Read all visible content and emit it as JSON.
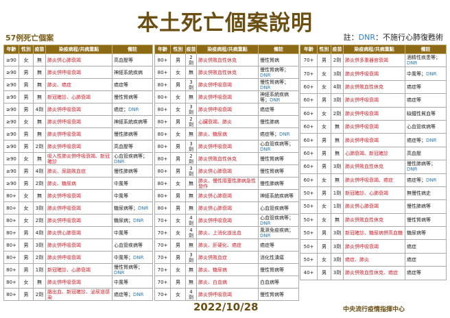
{
  "title": "本土死亡個案說明",
  "case_count": "57例死亡個案",
  "note": {
    "prefix": "註：",
    "dnr": "DNR",
    "text": "：不施行心肺復甦術"
  },
  "headers": [
    "年齡",
    "性別",
    "疫苗",
    "染疫病程/共病重點",
    "備註"
  ],
  "tables": [
    [
      [
        "≥90",
        "女",
        "無",
        "肺炎併心肺衰竭",
        "高血壓等"
      ],
      [
        "≥90",
        "男",
        "無",
        "肺炎併呼吸衰竭",
        "神經系統疾病"
      ],
      [
        "≥90",
        "男",
        "無",
        "肺炎、癌症",
        "癌症等"
      ],
      [
        "≥90",
        "男",
        "無",
        "新冠確診、心肺衰竭",
        "慢性腎病等"
      ],
      [
        "≥90",
        "男",
        "4劑",
        "肺炎併呼吸衰竭",
        "癌症；DNR"
      ],
      [
        "≥90",
        "女",
        "無",
        "肺炎併呼吸衰竭",
        "神經系統疾病等"
      ],
      [
        "≥90",
        "男",
        "無",
        "肺炎併呼吸衰竭",
        "慢性肺病等"
      ],
      [
        "≥90",
        "男",
        "2劑",
        "肺炎併呼吸衰竭",
        "高血壓等"
      ],
      [
        "≥90",
        "女",
        "無",
        "吸入性肺炎併呼吸衰竭、新冠確診",
        "心血管疾病等；DNR"
      ],
      [
        "≥90",
        "男",
        "4劑",
        "肺炎、尿路敗血症",
        "慢性肺病等"
      ],
      [
        "≥90",
        "男",
        "2劑",
        "肺炎、糖尿病",
        "中風等"
      ],
      [
        "80+",
        "女",
        "無",
        "肺炎併呼吸衰竭",
        "中風等"
      ],
      [
        "80+",
        "女",
        "3劑",
        "肺炎併呼吸衰竭",
        "糖尿病等；DNR"
      ],
      [
        "80+",
        "女",
        "2劑",
        "肺炎併呼吸衰竭",
        "糖尿病；DNR"
      ],
      [
        "80+",
        "男",
        "4劑",
        "肺炎併心肺衰竭",
        "中風等"
      ],
      [
        "80+",
        "男",
        "3劑",
        "肺炎併呼吸衰竭",
        "心血管疾病等"
      ],
      [
        "80+",
        "男",
        "2劑",
        "肺炎併呼吸衰竭",
        "中風等；DNR"
      ],
      [
        "80+",
        "男",
        "1劑",
        "新冠確診、心肺衰竭",
        "慢性腎病等；DNR"
      ],
      [
        "80+",
        "女",
        "無",
        "肺炎併呼吸衰竭",
        "中風等"
      ],
      [
        "80+",
        "男",
        "2劑",
        "腦出血、新冠確診、泌尿道感染",
        "癌症等；DNR"
      ]
    ],
    [
      [
        "80+",
        "男",
        "2劑",
        "肺炎併敗血性休克",
        "慢性腎病"
      ],
      [
        "80+",
        "女",
        "無",
        "肺炎併敗血性休克",
        "慢性腎病等；DNR"
      ],
      [
        "80+",
        "男",
        "3劑",
        "肺炎併呼吸衰竭",
        "慢性腎病等；DNR"
      ],
      [
        "80+",
        "女",
        "無",
        "肺炎併呼吸衰竭",
        "神經系統疾病等；DNR"
      ],
      [
        "80+",
        "女",
        "3劑",
        "肺炎併呼吸衰竭",
        "癌症等"
      ],
      [
        "80+",
        "男",
        "2劑",
        "心臟衰竭、肺炎",
        "慢性肺病"
      ],
      [
        "80+",
        "女",
        "無",
        "肺炎、糖尿病",
        "癌症等；DNR"
      ],
      [
        "80+",
        "男",
        "3劑",
        "肺炎併呼吸衰竭",
        "心血管疾病等；DNR"
      ],
      [
        "80+",
        "男",
        "2劑",
        "肺炎併敗血性休克",
        "慢性腎病等"
      ],
      [
        "80+",
        "男",
        "3劑",
        "肺炎併心肺衰竭",
        "慢性腎病等"
      ],
      [
        "80+",
        "女",
        "無",
        "肺炎、慢性阻塞性肺病急性發作",
        "慢性肺病等"
      ],
      [
        "80+",
        "男",
        "無",
        "肺炎併心肺衰竭",
        "神經系統疾病等"
      ],
      [
        "80+",
        "男",
        "無",
        "肺炎併心肺衰竭",
        "心血管疾病等"
      ],
      [
        "70+",
        "女",
        "4劑",
        "肺炎併呼吸衰竭",
        "心血管疾病等；DNR"
      ],
      [
        "70+",
        "女",
        "4劑",
        "肺炎、上消化道出血",
        "風濕免疫疾病；DNR"
      ],
      [
        "70+",
        "男",
        "無",
        "肺炎、肝硬化、癌症",
        "癌症等"
      ],
      [
        "70+",
        "男",
        "3劑",
        "肺炎併敗血症",
        "消化性潰瘍"
      ],
      [
        "70+",
        "女",
        "無",
        "肺炎、糖尿病",
        "慢性腎病等"
      ],
      [
        "70+",
        "男",
        "無",
        "肺炎、白血病",
        "白血病等"
      ],
      [
        "70+",
        "女",
        "4劑",
        "肺炎併呼吸衰竭",
        "慢性腎病等"
      ]
    ],
    [
      [
        "70+",
        "男",
        "2劑",
        "肺炎併多重器官衰竭",
        "酒精性疾患等；DNR"
      ],
      [
        "70+",
        "女",
        "3劑",
        "肺炎併呼吸衰竭",
        "中風等；DNR"
      ],
      [
        "60+",
        "女",
        "4劑",
        "肺炎併敗血性休克",
        "癌症等"
      ],
      [
        "60+",
        "男",
        "3劑",
        "肺炎併呼吸衰竭",
        "癌症等"
      ],
      [
        "60+",
        "女",
        "2劑",
        "肺炎併呼吸衰竭",
        "缺鐵性貧血等"
      ],
      [
        "60+",
        "女",
        "無",
        "肺炎併呼吸衰竭",
        "心血管疾病等"
      ],
      [
        "60+",
        "男",
        "無",
        "肺炎併呼吸衰竭",
        "癌症等；DNR"
      ],
      [
        "60+",
        "男",
        "無",
        "心肺衰竭、新冠確診",
        "高血壓"
      ],
      [
        "60+",
        "男",
        "3劑",
        "肺炎併敗血性休克",
        "慢性肺病等；DNR"
      ],
      [
        "60+",
        "女",
        "無",
        "肺炎併呼吸衰竭、癌症",
        "癌症等；DNR"
      ],
      [
        "50+",
        "男",
        "1劑",
        "新冠確診、心肺衰竭",
        "無慢性病史"
      ],
      [
        "50+",
        "女",
        "1劑",
        "肺炎併心肺衰竭",
        "慢性肺病等"
      ],
      [
        "50+",
        "女",
        "無",
        "肺炎併敗血性休克",
        "慢性腎病等"
      ],
      [
        "50+",
        "男",
        "3劑",
        "新冠確診、糖尿病併高血糖",
        "糖尿病等"
      ],
      [
        "50+",
        "男",
        "3劑",
        "肺炎併呼吸衰竭",
        "癌症"
      ],
      [
        "50+",
        "女",
        "3劑",
        "癌症、肺炎",
        "癌症"
      ],
      [
        "40+",
        "男",
        "3劑",
        "肺炎併敗血性休克、癌症",
        "癌症等"
      ]
    ]
  ],
  "date": "2022/10/28",
  "organization": "中央流行疫情指揮中心"
}
